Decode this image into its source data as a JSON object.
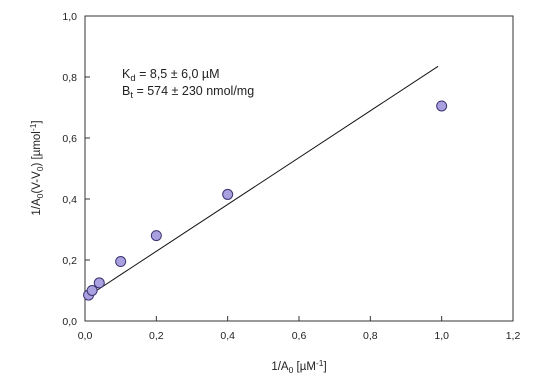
{
  "chart_data": {
    "type": "scatter",
    "xlabel": "1/A0 [µM-1]",
    "ylabel": "1/A0(V-V0) [µmol-1]",
    "xlim": [
      0.0,
      1.2
    ],
    "ylim": [
      0.0,
      1.0
    ],
    "x_ticks": [
      0.0,
      0.2,
      0.4,
      0.6,
      0.8,
      1.0,
      1.2
    ],
    "y_ticks": [
      0.0,
      0.2,
      0.4,
      0.6,
      0.8,
      1.0
    ],
    "x_tick_labels": [
      "0,0",
      "0,2",
      "0,4",
      "0,6",
      "0,8",
      "1,0",
      "1,2"
    ],
    "y_tick_labels": [
      "0,0",
      "0,2",
      "0,4",
      "0,6",
      "0,8",
      "1,0"
    ],
    "grid": false,
    "series": [
      {
        "points": [
          {
            "x": 0.01,
            "y": 0.085
          },
          {
            "x": 0.02,
            "y": 0.1
          },
          {
            "x": 0.04,
            "y": 0.125
          },
          {
            "x": 0.1,
            "y": 0.195
          },
          {
            "x": 0.2,
            "y": 0.28
          },
          {
            "x": 0.4,
            "y": 0.415
          },
          {
            "x": 1.0,
            "y": 0.705
          }
        ],
        "marker_color": "#a9a0e0",
        "marker_edge": "#3b3470"
      }
    ],
    "fit_line": {
      "x": [
        0.0,
        0.99
      ],
      "y": [
        0.075,
        0.835
      ],
      "color": "#111111"
    },
    "annotations": {
      "line1_main": "K",
      "line1_sub": "d",
      "line1_rest": " = 8,5 ± 6,0 µM",
      "line2_main": "B",
      "line2_sub": "t",
      "line2_rest": " = 574 ± 230 nmol/mg"
    }
  },
  "labels": {
    "x_title_main": "1/A",
    "x_title_sub": "0",
    "x_title_mid": " [µM",
    "x_title_sup": "-1",
    "x_title_end": "]",
    "y_title_a": "1/A",
    "y_title_sub1": "0",
    "y_title_b": "(V-V",
    "y_title_sub2": "0",
    "y_title_c": ") [µmol",
    "y_title_sup": "-1",
    "y_title_d": "]"
  }
}
